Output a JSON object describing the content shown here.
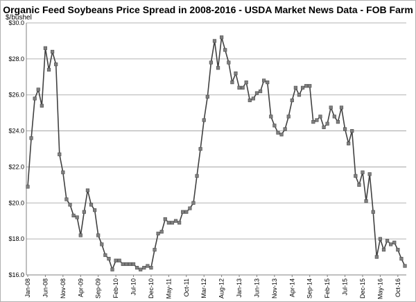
{
  "chart_data": {
    "type": "line",
    "title": "Organic Feed Soybeans Price Spread in 2008-2016 - USDA Market News Data - FOB Farm",
    "ylabel": "$/bushel",
    "xlabel": "",
    "ylim": [
      16.0,
      30.0
    ],
    "y_ticks": [
      "$16.0",
      "$18.0",
      "$20.0",
      "$22.0",
      "$24.0",
      "$26.0",
      "$28.0",
      "$30.0"
    ],
    "x_tick_labels": [
      "Jan-08",
      "Jun-08",
      "Nov-08",
      "Apr-09",
      "Sep-09",
      "Feb-10",
      "Jul-10",
      "Dec-10",
      "May-11",
      "Oct-11",
      "Mar-12",
      "Aug-12",
      "Jan-13",
      "Jun-13",
      "Nov-13",
      "Apr-14",
      "Sep-14",
      "Feb-15",
      "Jul-15",
      "Dec-15",
      "May-16",
      "Oct-16"
    ],
    "grid": true,
    "legend": "none",
    "line_color": "#404040",
    "marker_color": "#7f7f7f",
    "series": [
      {
        "values": [
          20.9,
          23.6,
          25.8,
          26.3,
          25.4,
          28.6,
          27.4,
          28.4,
          27.7,
          22.7,
          21.7,
          20.2,
          19.9,
          19.3,
          19.2,
          18.2,
          19.5,
          20.7,
          19.9,
          19.6,
          18.2,
          17.7,
          17.1,
          16.9,
          16.3,
          16.8,
          16.8,
          16.6,
          16.6,
          16.6,
          16.6,
          16.4,
          16.3,
          16.4,
          16.5,
          16.4,
          17.4,
          18.3,
          18.4,
          19.1,
          18.9,
          18.9,
          19.0,
          18.9,
          19.5,
          19.5,
          19.7,
          20.0,
          21.5,
          23.0,
          24.6,
          25.9,
          27.8,
          29.0,
          27.5,
          29.2,
          28.5,
          27.8,
          26.7,
          27.2,
          26.4,
          26.4,
          26.7,
          25.7,
          25.8,
          26.1,
          26.2,
          26.8,
          26.7,
          24.8,
          24.3,
          23.9,
          23.8,
          24.1,
          24.8,
          25.7,
          26.4,
          26.0,
          26.4,
          26.5,
          26.5,
          24.5,
          24.6,
          24.8,
          24.2,
          24.4,
          25.3,
          24.8,
          24.5,
          25.3,
          24.1,
          23.3,
          24.0,
          21.5,
          21.0,
          21.7,
          20.1,
          21.6,
          19.5,
          17.0,
          18.0,
          17.4,
          17.9,
          17.7,
          17.8,
          17.4,
          16.9,
          16.5
        ]
      }
    ]
  }
}
